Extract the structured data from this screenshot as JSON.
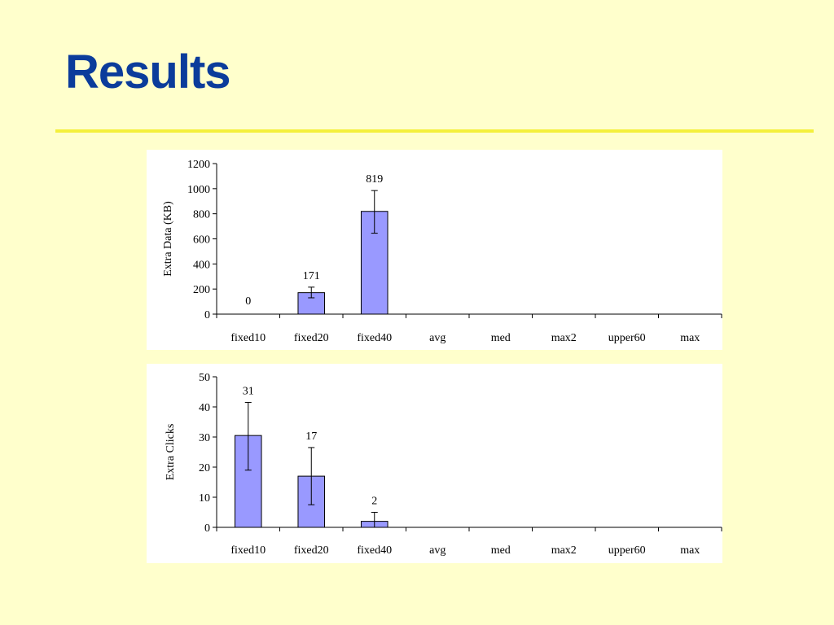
{
  "slide": {
    "title": "Results",
    "title_color": "#0B3C9B",
    "rule_color": "#F4F03C"
  },
  "chart_data": [
    {
      "type": "bar",
      "categories": [
        "fixed10",
        "fixed20",
        "fixed40",
        "avg",
        "med",
        "max2",
        "upper60",
        "max"
      ],
      "values": [
        0,
        171,
        819,
        0,
        0,
        0,
        0,
        0
      ],
      "error_low": [
        0,
        130,
        645,
        0,
        0,
        0,
        0,
        0
      ],
      "error_high": [
        0,
        215,
        985,
        0,
        0,
        0,
        0,
        0
      ],
      "data_labels": [
        "0",
        "171",
        "819",
        "",
        "",
        "",
        "",
        ""
      ],
      "ylabel": "Extra Data (KB)",
      "xlabel": "",
      "ylim": [
        0,
        1200
      ],
      "yticks": [
        0,
        200,
        400,
        600,
        800,
        1000,
        1200
      ],
      "grid": false,
      "bar_color": "#9999FF"
    },
    {
      "type": "bar",
      "categories": [
        "fixed10",
        "fixed20",
        "fixed40",
        "avg",
        "med",
        "max2",
        "upper60",
        "max"
      ],
      "values": [
        30.5,
        17,
        2,
        0,
        0,
        0,
        0,
        0
      ],
      "error_low": [
        19,
        7.5,
        0,
        0,
        0,
        0,
        0,
        0
      ],
      "error_high": [
        41.5,
        26.5,
        5,
        0,
        0,
        0,
        0,
        0
      ],
      "data_labels": [
        "31",
        "17",
        "2",
        "",
        "",
        "",
        "",
        ""
      ],
      "ylabel": "Extra Clicks",
      "xlabel": "",
      "ylim": [
        0,
        50
      ],
      "yticks": [
        0,
        10,
        20,
        30,
        40,
        50
      ],
      "grid": false,
      "bar_color": "#9999FF"
    }
  ]
}
